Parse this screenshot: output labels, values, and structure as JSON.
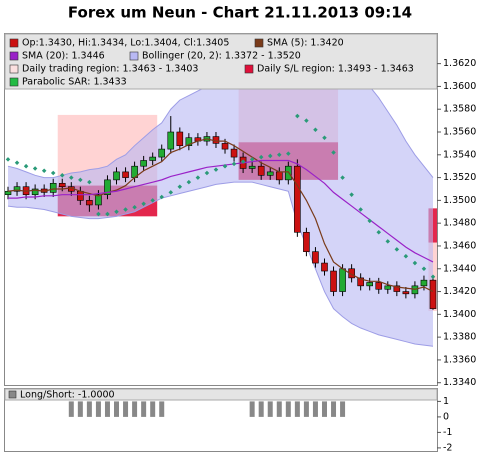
{
  "chart_data": [
    {
      "type": "candlestick",
      "title": "Forex um Neun - Chart 21.11.2013 09:14",
      "ylim": [
        1.3338,
        1.3646
      ],
      "yticks": [
        {
          "value": 1.334,
          "label": "1.3340"
        },
        {
          "value": 1.336,
          "label": "1.3360"
        },
        {
          "value": 1.338,
          "label": "1.3380"
        },
        {
          "value": 1.34,
          "label": "1.3400"
        },
        {
          "value": 1.342,
          "label": "1.3420"
        },
        {
          "value": 1.344,
          "label": "1.3440"
        },
        {
          "value": 1.346,
          "label": "1.3460"
        },
        {
          "value": 1.348,
          "label": "1.3480"
        },
        {
          "value": 1.35,
          "label": "1.3500"
        },
        {
          "value": 1.352,
          "label": "1.3520"
        },
        {
          "value": 1.354,
          "label": "1.3540"
        },
        {
          "value": 1.356,
          "label": "1.3560"
        },
        {
          "value": 1.358,
          "label": "1.3580"
        },
        {
          "value": 1.36,
          "label": "1.3600"
        },
        {
          "value": 1.362,
          "label": "1.3620"
        }
      ],
      "legend": [
        {
          "label": "Op:1.3430, Hi:1.3434, Lo:1.3404, Cl:1.3405",
          "color": "#cc1111"
        },
        {
          "label": "SMA (5): 1.3420",
          "color": "#7a3b1a"
        },
        {
          "label": "SMA (20): 1.3446",
          "color": "#9a22c8"
        },
        {
          "label": "Bollinger (20, 2): 1.3372 - 1.3520",
          "color": "#b8b8f4"
        },
        {
          "label": "Daily trading region: 1.3463 - 1.3403",
          "color": "#fbe0e0"
        },
        {
          "label": "Daily S/L region: 1.3493 - 1.3463",
          "color": "#e0103a"
        },
        {
          "label": "Parabolic SAR: 1.3433",
          "color": "#22bb44"
        }
      ],
      "up_color": "#22aa33",
      "down_color": "#cc1111",
      "open": [
        1.3505,
        1.3508,
        1.3512,
        1.3505,
        1.351,
        1.3507,
        1.3515,
        1.3512,
        1.3508,
        1.35,
        1.3496,
        1.3505,
        1.3518,
        1.3525,
        1.352,
        1.353,
        1.3535,
        1.3538,
        1.3545,
        1.356,
        1.3548,
        1.3555,
        1.3552,
        1.3556,
        1.355,
        1.3545,
        1.3538,
        1.3528,
        1.353,
        1.3522,
        1.3525,
        1.3518,
        1.353,
        1.3472,
        1.3455,
        1.3445,
        1.3438,
        1.342,
        1.344,
        1.3432,
        1.3425,
        1.3428,
        1.3422,
        1.3425,
        1.342,
        1.3418,
        1.3425,
        1.343
      ],
      "high": [
        1.3512,
        1.3516,
        1.3516,
        1.3514,
        1.3514,
        1.3519,
        1.3519,
        1.3516,
        1.3512,
        1.3504,
        1.3509,
        1.3522,
        1.3529,
        1.3529,
        1.3534,
        1.3539,
        1.3542,
        1.3549,
        1.3574,
        1.3564,
        1.3559,
        1.3559,
        1.356,
        1.356,
        1.3554,
        1.3549,
        1.3542,
        1.3534,
        1.3534,
        1.3529,
        1.3529,
        1.3534,
        1.3536,
        1.3476,
        1.3459,
        1.3449,
        1.3442,
        1.3444,
        1.3444,
        1.3436,
        1.3432,
        1.3432,
        1.3429,
        1.3429,
        1.3424,
        1.3429,
        1.3434,
        1.3434
      ],
      "low": [
        1.3501,
        1.3504,
        1.3501,
        1.3501,
        1.3503,
        1.3503,
        1.3508,
        1.3504,
        1.3496,
        1.349,
        1.3492,
        1.3501,
        1.3514,
        1.3516,
        1.3516,
        1.3526,
        1.3531,
        1.3534,
        1.3541,
        1.3544,
        1.3544,
        1.3548,
        1.3548,
        1.3546,
        1.3541,
        1.3534,
        1.3524,
        1.3524,
        1.3518,
        1.3518,
        1.3514,
        1.3514,
        1.3468,
        1.3451,
        1.3441,
        1.3434,
        1.3416,
        1.3416,
        1.3428,
        1.3421,
        1.3421,
        1.3418,
        1.3418,
        1.3416,
        1.3414,
        1.3414,
        1.3421,
        1.3404
      ],
      "close": [
        1.3508,
        1.3512,
        1.3505,
        1.351,
        1.3507,
        1.3515,
        1.3512,
        1.3508,
        1.35,
        1.3496,
        1.3505,
        1.3518,
        1.3525,
        1.352,
        1.353,
        1.3535,
        1.3538,
        1.3545,
        1.356,
        1.3548,
        1.3555,
        1.3552,
        1.3556,
        1.355,
        1.3545,
        1.3538,
        1.3528,
        1.353,
        1.3522,
        1.3525,
        1.3518,
        1.353,
        1.3472,
        1.3455,
        1.3445,
        1.3438,
        1.342,
        1.344,
        1.3432,
        1.3425,
        1.3428,
        1.3422,
        1.3425,
        1.342,
        1.3418,
        1.3425,
        1.343,
        1.3405
      ],
      "sma5": [
        1.3508,
        1.3509,
        1.3508,
        1.3509,
        1.3508,
        1.351,
        1.351,
        1.3511,
        1.3508,
        1.3506,
        1.3504,
        1.3507,
        1.3509,
        1.3513,
        1.352,
        1.3526,
        1.353,
        1.3534,
        1.3542,
        1.3545,
        1.3549,
        1.3552,
        1.3554,
        1.3552,
        1.3552,
        1.3548,
        1.3543,
        1.3538,
        1.3533,
        1.3529,
        1.3525,
        1.3525,
        1.3513,
        1.35,
        1.3484,
        1.3462,
        1.3446,
        1.344,
        1.3435,
        1.3431,
        1.3429,
        1.3429,
        1.3426,
        1.3424,
        1.3423,
        1.3422,
        1.3424,
        1.342
      ],
      "sma20": [
        1.3502,
        1.3502,
        1.3503,
        1.3503,
        1.3504,
        1.3504,
        1.3505,
        1.3505,
        1.3505,
        1.3505,
        1.3506,
        1.3507,
        1.3508,
        1.351,
        1.3512,
        1.3514,
        1.3516,
        1.3518,
        1.3521,
        1.3523,
        1.3525,
        1.3527,
        1.3529,
        1.353,
        1.3531,
        1.3532,
        1.3533,
        1.3534,
        1.3535,
        1.3535,
        1.3535,
        1.3535,
        1.3532,
        1.3527,
        1.3521,
        1.3515,
        1.3507,
        1.3501,
        1.3495,
        1.3489,
        1.3483,
        1.3477,
        1.3471,
        1.3465,
        1.3459,
        1.3454,
        1.345,
        1.3446
      ],
      "boll_upper": [
        1.353,
        1.3528,
        1.3525,
        1.3522,
        1.352,
        1.352,
        1.3522,
        1.3524,
        1.3525,
        1.3527,
        1.3528,
        1.353,
        1.3536,
        1.354,
        1.3548,
        1.3555,
        1.3562,
        1.3568,
        1.358,
        1.3588,
        1.3592,
        1.3596,
        1.36,
        1.3603,
        1.3605,
        1.3607,
        1.3608,
        1.361,
        1.3611,
        1.3612,
        1.3612,
        1.3612,
        1.3616,
        1.3622,
        1.3628,
        1.363,
        1.3628,
        1.3624,
        1.3618,
        1.361,
        1.36,
        1.359,
        1.3578,
        1.3566,
        1.3552,
        1.354,
        1.353,
        1.352
      ],
      "boll_lower": [
        1.3495,
        1.3494,
        1.3494,
        1.3493,
        1.3492,
        1.349,
        1.3488,
        1.3486,
        1.3485,
        1.3484,
        1.3484,
        1.3485,
        1.3486,
        1.3488,
        1.349,
        1.3494,
        1.3498,
        1.3502,
        1.3504,
        1.3506,
        1.3508,
        1.351,
        1.3512,
        1.3514,
        1.3515,
        1.3516,
        1.3516,
        1.3516,
        1.3514,
        1.3512,
        1.351,
        1.3508,
        1.348,
        1.346,
        1.344,
        1.342,
        1.3405,
        1.3398,
        1.3392,
        1.3388,
        1.3385,
        1.3382,
        1.338,
        1.3378,
        1.3376,
        1.3374,
        1.3373,
        1.3372
      ],
      "sar": [
        1.3536,
        1.3533,
        1.353,
        1.3528,
        1.3526,
        1.3524,
        1.3522,
        1.352,
        1.3518,
        1.3516,
        1.3488,
        1.3488,
        1.349,
        1.3492,
        1.3494,
        1.3497,
        1.35,
        1.3503,
        1.3507,
        1.3512,
        1.3516,
        1.352,
        1.3524,
        1.3527,
        1.353,
        1.3532,
        1.3534,
        1.3536,
        1.3538,
        1.3539,
        1.354,
        1.3541,
        1.3574,
        1.357,
        1.3562,
        1.3555,
        1.3542,
        1.352,
        1.3505,
        1.3492,
        1.3482,
        1.3472,
        1.3464,
        1.3457,
        1.3451,
        1.3445,
        1.344,
        1.3433
      ],
      "regions": [
        {
          "start": 6,
          "end": 16,
          "trading_high": 1.3575,
          "trading_low": 1.3513,
          "sl_high": 1.3513,
          "sl_low": 1.3486
        },
        {
          "start": 26,
          "end": 36,
          "trading_high": 1.364,
          "trading_low": 1.3551,
          "sl_high": 1.3551,
          "sl_low": 1.3518
        },
        {
          "start": 47,
          "end": 47,
          "trading_high": 1.3463,
          "trading_low": 1.3403,
          "sl_high": 1.3493,
          "sl_low": 1.3463
        }
      ]
    },
    {
      "type": "bar",
      "label": "Long/Short: -1.0000",
      "color": "#888888",
      "ylim": [
        -2.2,
        1.8
      ],
      "yticks": [
        1,
        0,
        -1,
        -2
      ],
      "values": [
        null,
        null,
        null,
        null,
        null,
        null,
        null,
        1,
        1,
        1,
        1,
        1,
        1,
        1,
        1,
        1,
        1,
        1,
        null,
        null,
        null,
        null,
        null,
        null,
        null,
        null,
        null,
        1,
        1,
        1,
        1,
        1,
        1,
        1,
        1,
        1,
        1,
        1,
        null,
        null,
        null,
        null,
        null,
        null,
        null,
        null,
        null,
        null
      ]
    }
  ]
}
